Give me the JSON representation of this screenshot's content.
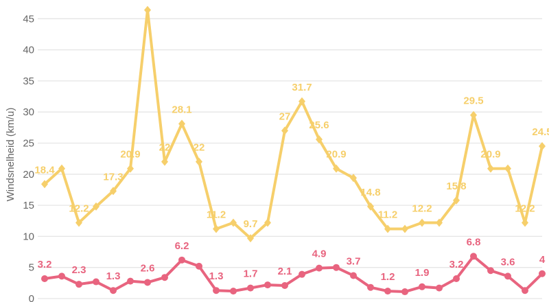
{
  "chart_data": {
    "type": "line",
    "title": "",
    "xlabel": "",
    "ylabel": "Windsnelheid (km/u)",
    "ylim": [
      0,
      48
    ],
    "yticks": [
      0,
      5,
      10,
      15,
      20,
      25,
      30,
      35,
      40,
      45
    ],
    "grid": true,
    "legend": "none",
    "series": [
      {
        "color": "#f6cf6b",
        "marker": "diamond",
        "values": [
          18.4,
          20.9,
          12.2,
          14.8,
          17.3,
          20.9,
          46.4,
          22,
          28.1,
          22,
          11.2,
          12.2,
          9.7,
          12.2,
          27,
          31.7,
          25.6,
          20.9,
          19.4,
          14.8,
          11.2,
          11.2,
          12.2,
          12.2,
          15.8,
          29.5,
          20.9,
          20.9,
          12.2,
          24.5
        ],
        "labeled": [
          0,
          2,
          4,
          5,
          7,
          8,
          9,
          10,
          12,
          14,
          15,
          16,
          17,
          19,
          20,
          22,
          24,
          25,
          26,
          28,
          29
        ]
      },
      {
        "color": "#e8647f",
        "marker": "circle",
        "values": [
          3.2,
          3.6,
          2.3,
          2.7,
          1.3,
          2.8,
          2.6,
          3.4,
          6.2,
          5.2,
          1.3,
          1.2,
          1.7,
          2.2,
          2.1,
          3.9,
          4.9,
          5.0,
          3.7,
          1.8,
          1.2,
          1.1,
          1.9,
          1.7,
          3.2,
          6.8,
          4.5,
          3.6,
          1.3,
          4
        ],
        "labeled": [
          0,
          2,
          4,
          6,
          8,
          10,
          12,
          14,
          16,
          18,
          20,
          22,
          24,
          25,
          27,
          29
        ]
      }
    ]
  }
}
